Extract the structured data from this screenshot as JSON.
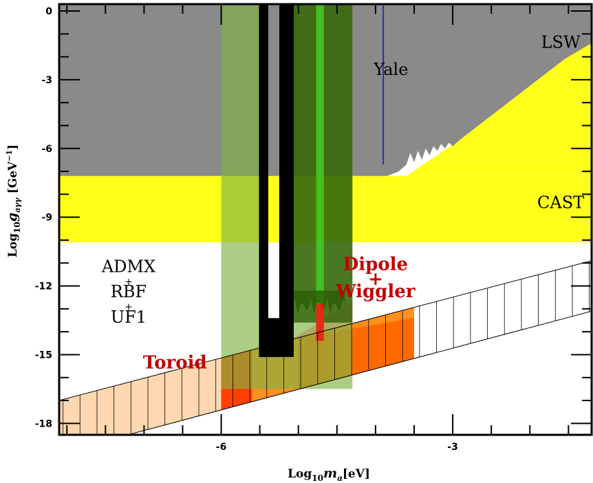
{
  "chart_data": {
    "type": "area",
    "title": "",
    "xlabel": {
      "main": "Log",
      "sub": "10",
      "var": "m",
      "varsub": "a",
      "unit": "[eV]"
    },
    "ylabel": {
      "main": "Log",
      "sub": "10",
      "var": "g",
      "varsub": "aγγ",
      "unit": "[GeV",
      "sup": "−1",
      "close": "]"
    },
    "xlim": [
      -8.1,
      -1.2
    ],
    "ylim": [
      -18.5,
      0.3
    ],
    "x_ticks": [
      {
        "value": -6,
        "label": "-6"
      },
      {
        "value": -3,
        "label": "-3"
      }
    ],
    "y_ticks": [
      {
        "value": 0,
        "label": "0"
      },
      {
        "value": -3,
        "label": "-3"
      },
      {
        "value": -6,
        "label": "-6"
      },
      {
        "value": -9,
        "label": "-9"
      },
      {
        "value": -12,
        "label": "-12"
      },
      {
        "value": -15,
        "label": "-15"
      },
      {
        "value": -18,
        "label": "-18"
      }
    ],
    "regions": [
      {
        "name": "LSW",
        "color": "#8a8a8a",
        "description": "excluded, gray region above ~-7.2 with rising edge at m > -3.6"
      },
      {
        "name": "CAST",
        "color": "#ffff1a",
        "y_range": [
          -10.1,
          -7.2
        ]
      },
      {
        "name": "Yale",
        "color": "#2233aa",
        "x": -3.9,
        "y_range": [
          -6.7,
          0.3
        ]
      }
    ],
    "green_bands": [
      {
        "x_range": [
          -6.0,
          -4.3
        ],
        "y_range": [
          -16.5,
          0.3
        ],
        "color": "#7fb342",
        "opacity": 0.65
      },
      {
        "x_range": [
          -5.3,
          -4.3
        ],
        "y_range": [
          -13.6,
          0.3
        ],
        "color": "#2a5a00",
        "opacity": 0.75
      },
      {
        "x_range": [
          -4.77,
          -4.67
        ],
        "y_range": [
          -14.4,
          0.3
        ],
        "color": "#44cc22",
        "opacity": 0.85
      }
    ],
    "black_bars": [
      {
        "x_range": [
          -5.51,
          -5.06
        ],
        "y_range": [
          -15.1,
          0.3
        ],
        "note": "ADMX + RBF + UF1"
      },
      {
        "x_range": [
          -5.23,
          -5.13
        ],
        "y_range": [
          -13.5,
          0.3
        ]
      }
    ],
    "axion_band": {
      "lower": [
        [
          -8.1,
          -19.3
        ],
        [
          -1.2,
          -13.1
        ]
      ],
      "upper": [
        [
          -8.1,
          -17.0
        ],
        [
          -1.2,
          -10.9
        ]
      ],
      "hatch_step": 0.22
    },
    "sensitivity_regions": [
      {
        "name": "Toroid",
        "color": "#ff8f1f",
        "x_range": [
          -6.0,
          -3.5
        ]
      },
      {
        "name": "Dipole + Wiggler",
        "color": "#ff6a00",
        "x_range": [
          -5.0,
          -3.5
        ]
      },
      {
        "name": "faint",
        "color": "#ffd8b0",
        "x_range": [
          -8.1,
          -6.0
        ]
      },
      {
        "name": "pink",
        "color": "#ff9aa5",
        "x_range": [
          -6.0,
          -4.3
        ],
        "y_range": [
          -16.5,
          -12.7
        ]
      }
    ],
    "labels": [
      {
        "text": "LSW",
        "x": -1.6,
        "y": -1.6,
        "kind": "normal"
      },
      {
        "text": "Yale",
        "x": -3.8,
        "y": -2.8,
        "kind": "normal"
      },
      {
        "text": "CAST",
        "x": -1.6,
        "y": -8.6,
        "kind": "normal"
      },
      {
        "text": "ADMX",
        "x": -7.2,
        "y": -11.4,
        "kind": "normal"
      },
      {
        "text": "+",
        "x": -7.2,
        "y": -11.95,
        "kind": "small"
      },
      {
        "text": "RBF",
        "x": -7.2,
        "y": -12.5,
        "kind": "normal"
      },
      {
        "text": "+",
        "x": -7.2,
        "y": -13.05,
        "kind": "small"
      },
      {
        "text": "UF1",
        "x": -7.2,
        "y": -13.6,
        "kind": "normal"
      },
      {
        "text": "Toroid",
        "x": -6.6,
        "y": -15.6,
        "kind": "red"
      },
      {
        "text": "Dipole",
        "x": -4.0,
        "y": -11.3,
        "kind": "red"
      },
      {
        "text": "+",
        "x": -4.0,
        "y": -11.95,
        "kind": "red"
      },
      {
        "text": "Wiggler",
        "x": -4.0,
        "y": -12.5,
        "kind": "red"
      }
    ]
  }
}
